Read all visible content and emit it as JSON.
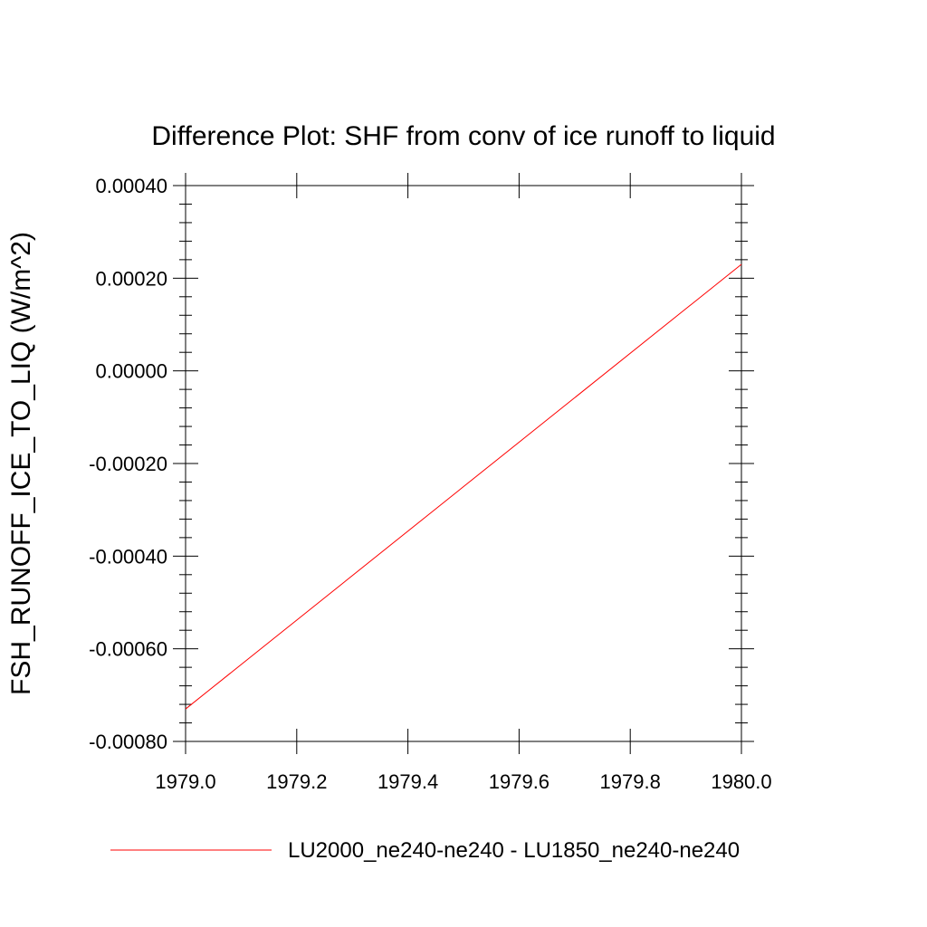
{
  "chart_data": {
    "type": "line",
    "title": "Difference Plot: SHF from conv of ice runoff to liquid",
    "xlabel": "",
    "ylabel": "FSH_RUNOFF_ICE_TO_LIQ  (W/m^2)",
    "xlim": [
      1979.0,
      1980.0
    ],
    "ylim": [
      -0.0008,
      0.0004
    ],
    "x_ticks": [
      1979.0,
      1979.2,
      1979.4,
      1979.6,
      1979.8,
      1980.0
    ],
    "x_tick_labels": [
      "1979.0",
      "1979.2",
      "1979.4",
      "1979.6",
      "1979.8",
      "1980.0"
    ],
    "y_ticks": [
      -0.0008,
      -0.0006,
      -0.0004,
      -0.0002,
      0.0,
      0.0002,
      0.0004
    ],
    "y_tick_labels": [
      "-0.00080",
      "-0.00060",
      "-0.00040",
      "-0.00020",
      "0.00000",
      "0.00020",
      "0.00040"
    ],
    "grid": false,
    "legend_position": "bottom",
    "series": [
      {
        "name": "LU2000_ne240-ne240 - LU1850_ne240-ne240",
        "color": "#ff0000",
        "x": [
          1979.0,
          1980.0
        ],
        "y": [
          -0.00073,
          0.00023
        ]
      }
    ]
  }
}
